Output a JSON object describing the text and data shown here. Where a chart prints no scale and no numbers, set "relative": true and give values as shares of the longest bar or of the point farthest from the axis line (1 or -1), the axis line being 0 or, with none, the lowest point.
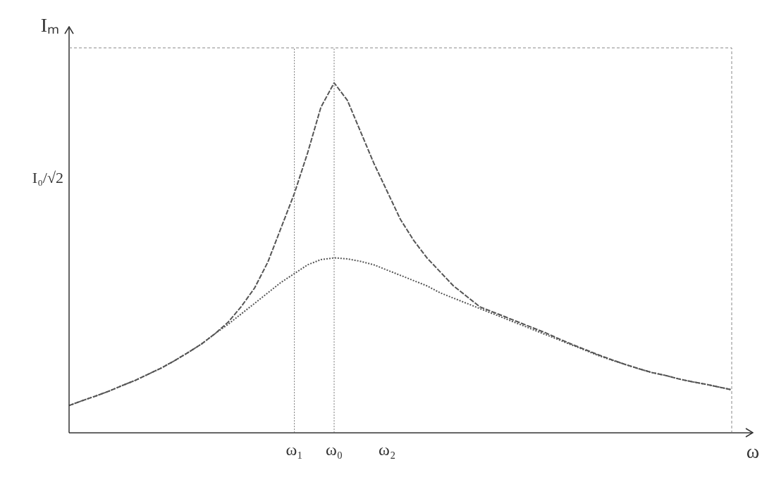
{
  "chart_data": {
    "type": "line",
    "relative": true,
    "xlabel": "ω",
    "ylabel": "Iₘ",
    "categories": [
      null,
      null,
      null,
      null,
      null,
      null,
      null,
      null,
      null,
      null,
      null,
      null,
      null,
      null,
      null,
      null,
      null,
      "ω₁",
      null,
      null,
      "ω₀",
      null,
      null,
      null,
      "ω₂",
      null,
      null,
      null,
      null,
      null,
      null,
      null,
      null,
      null,
      null,
      null,
      null,
      null,
      null,
      null,
      null,
      null,
      null,
      null,
      null,
      null,
      null,
      null,
      null,
      null,
      null
    ],
    "series": [
      {
        "color": "#555555",
        "line_style": "dashed",
        "values": [
          0.078,
          0.092,
          0.105,
          0.119,
          0.135,
          0.15,
          0.168,
          0.186,
          0.207,
          0.23,
          0.254,
          0.283,
          0.316,
          0.361,
          0.414,
          0.488,
          0.586,
          0.684,
          0.8,
          0.93,
          1,
          0.95,
          0.86,
          0.77,
          0.69,
          0.61,
          0.55,
          0.5,
          0.46,
          0.42,
          0.39,
          0.36,
          0.345,
          0.33,
          0.315,
          0.3,
          0.285,
          0.268,
          0.252,
          0.237,
          0.222,
          0.208,
          0.195,
          0.183,
          0.172,
          0.164,
          0.154,
          0.146,
          0.139,
          0.131,
          0.123
        ]
      },
      {
        "color": "#555555",
        "line_style": "dotted",
        "values": [
          0.078,
          0.092,
          0.105,
          0.119,
          0.135,
          0.15,
          0.168,
          0.186,
          0.207,
          0.23,
          0.254,
          0.283,
          0.31,
          0.34,
          0.37,
          0.4,
          0.43,
          0.455,
          0.48,
          0.495,
          0.5,
          0.497,
          0.49,
          0.48,
          0.465,
          0.45,
          0.435,
          0.42,
          0.4,
          0.385,
          0.37,
          0.355,
          0.34,
          0.325,
          0.31,
          0.295,
          0.28,
          0.265,
          0.25,
          0.235,
          0.22,
          0.207,
          0.195,
          0.183,
          0.172,
          0.164,
          0.154,
          0.146,
          0.139,
          0.131,
          0.123
        ]
      }
    ],
    "ref_lines": [
      {
        "axis": "x",
        "value": "ω₁",
        "line_style": "dotted",
        "color": "#777777"
      },
      {
        "axis": "x",
        "value": "ω₀",
        "line_style": "dotted",
        "color": "#777777"
      }
    ],
    "annotations": [
      "I₀/√2"
    ]
  }
}
